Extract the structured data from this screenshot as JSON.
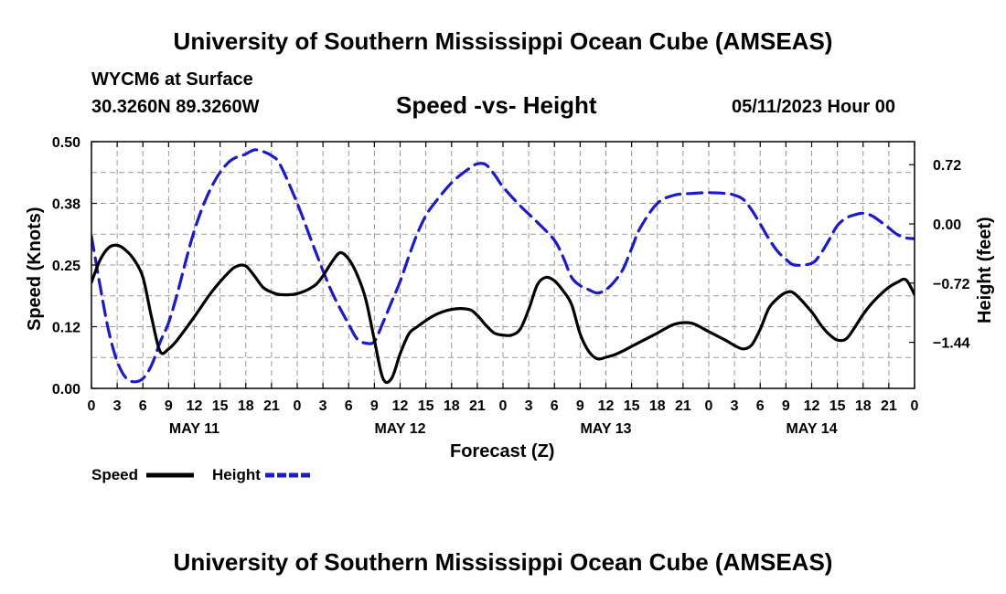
{
  "title_top": "University of Southern Mississippi Ocean Cube (AMSEAS)",
  "title_bottom": "University of Southern Mississippi Ocean Cube (AMSEAS)",
  "station": "WYCM6 at Surface",
  "location": "30.3260N  89.3260W",
  "datetime": "05/11/2023 Hour 00",
  "colors": {
    "speed": "#000000",
    "height": "#1a1ad1",
    "grid": "#9a9a9a"
  },
  "chart_data": {
    "type": "line",
    "title": "Speed -vs- Height",
    "xlabel": "Forecast (Z)",
    "ylabel": "Speed (Knots)",
    "y2label": "Height (feet)",
    "xlim": [
      0,
      96
    ],
    "ylim": [
      0,
      0.5
    ],
    "y2lim": [
      -2.0,
      1.0
    ],
    "x_ticks": [
      0,
      3,
      6,
      9,
      12,
      15,
      18,
      21,
      24,
      27,
      30,
      33,
      36,
      39,
      42,
      45,
      48,
      51,
      54,
      57,
      60,
      63,
      66,
      69,
      72,
      75,
      78,
      81,
      84,
      87,
      90,
      93,
      96
    ],
    "x_tick_labels": [
      "0",
      "3",
      "6",
      "9",
      "12",
      "15",
      "18",
      "21",
      "0",
      "3",
      "6",
      "9",
      "12",
      "15",
      "18",
      "21",
      "0",
      "3",
      "6",
      "9",
      "12",
      "15",
      "18",
      "21",
      "0",
      "3",
      "6",
      "9",
      "12",
      "15",
      "18",
      "21",
      "0"
    ],
    "y_ticks": [
      0.0,
      0.125,
      0.25,
      0.375,
      0.5
    ],
    "y_tick_labels": [
      "0.00",
      "0.12",
      "0.25",
      "0.38",
      "0.50"
    ],
    "y2_ticks": [
      0.72,
      0.0,
      -0.72,
      -1.44
    ],
    "y2_tick_labels": [
      "0.72",
      "0.00",
      "−0.72",
      "−1.44"
    ],
    "date_labels": [
      {
        "x": 12,
        "label": "MAY 11"
      },
      {
        "x": 36,
        "label": "MAY 12"
      },
      {
        "x": 60,
        "label": "MAY 13"
      },
      {
        "x": 84,
        "label": "MAY 14"
      }
    ],
    "grid": true,
    "series": [
      {
        "name": "Speed",
        "axis": "left",
        "style": "solid",
        "x": [
          0,
          1,
          2,
          3,
          4,
          5,
          6,
          7,
          8,
          9,
          10,
          12,
          14,
          16,
          17,
          18,
          19,
          20,
          21,
          22,
          24,
          26,
          27,
          28,
          29,
          30,
          31,
          32,
          33,
          34,
          35,
          36,
          37,
          38,
          40,
          42,
          44,
          45,
          46,
          47,
          48,
          49,
          50,
          51,
          52,
          53,
          54,
          55,
          56,
          57,
          58,
          59,
          60,
          61,
          62,
          63,
          64,
          66,
          68,
          70,
          72,
          74,
          75,
          76,
          77,
          78,
          79,
          80,
          81,
          82,
          84,
          85,
          86,
          87,
          88,
          89,
          90,
          91,
          92,
          93,
          94,
          95,
          96
        ],
        "y": [
          0.215,
          0.26,
          0.285,
          0.29,
          0.28,
          0.26,
          0.225,
          0.145,
          0.075,
          0.08,
          0.098,
          0.145,
          0.195,
          0.235,
          0.248,
          0.248,
          0.228,
          0.205,
          0.195,
          0.19,
          0.192,
          0.208,
          0.228,
          0.255,
          0.275,
          0.262,
          0.23,
          0.18,
          0.098,
          0.02,
          0.02,
          0.07,
          0.11,
          0.125,
          0.148,
          0.16,
          0.16,
          0.148,
          0.128,
          0.112,
          0.108,
          0.108,
          0.12,
          0.16,
          0.21,
          0.225,
          0.218,
          0.198,
          0.17,
          0.11,
          0.075,
          0.06,
          0.063,
          0.068,
          0.076,
          0.085,
          0.094,
          0.112,
          0.13,
          0.132,
          0.115,
          0.097,
          0.087,
          0.08,
          0.088,
          0.12,
          0.162,
          0.182,
          0.194,
          0.192,
          0.155,
          0.13,
          0.11,
          0.098,
          0.1,
          0.123,
          0.15,
          0.172,
          0.19,
          0.205,
          0.215,
          0.22,
          0.19
        ]
      },
      {
        "name": "Height",
        "axis": "right",
        "style": "dashed",
        "x": [
          0,
          1,
          2,
          3,
          4,
          5,
          6,
          7,
          8,
          9,
          10,
          12,
          14,
          16,
          18,
          19,
          20,
          21,
          22,
          24,
          26,
          28,
          30,
          31,
          32,
          33,
          34,
          35,
          36,
          37,
          38,
          39,
          40,
          42,
          44,
          45,
          46,
          47,
          48,
          50,
          52,
          54,
          55,
          56,
          57,
          58,
          59,
          60,
          61,
          62,
          63,
          64,
          66,
          68,
          70,
          72,
          74,
          75,
          76,
          77,
          78,
          79,
          80,
          81,
          82,
          84,
          85,
          86,
          87,
          88,
          89,
          90,
          91,
          92,
          93,
          94,
          95,
          96
        ],
        "y": [
          -0.15,
          -0.75,
          -1.3,
          -1.67,
          -1.87,
          -1.92,
          -1.88,
          -1.72,
          -1.44,
          -1.2,
          -0.85,
          -0.08,
          0.45,
          0.75,
          0.85,
          0.9,
          0.88,
          0.83,
          0.72,
          0.25,
          -0.3,
          -0.82,
          -1.22,
          -1.4,
          -1.45,
          -1.43,
          -1.2,
          -0.95,
          -0.7,
          -0.4,
          -0.12,
          0.1,
          0.25,
          0.5,
          0.67,
          0.73,
          0.72,
          0.6,
          0.45,
          0.22,
          0.02,
          -0.2,
          -0.4,
          -0.65,
          -0.75,
          -0.8,
          -0.84,
          -0.8,
          -0.7,
          -0.55,
          -0.3,
          -0.05,
          0.25,
          0.35,
          0.37,
          0.38,
          0.37,
          0.35,
          0.3,
          0.17,
          0.0,
          -0.18,
          -0.33,
          -0.43,
          -0.5,
          -0.48,
          -0.37,
          -0.2,
          -0.02,
          0.07,
          0.11,
          0.13,
          0.1,
          0.03,
          -0.05,
          -0.13,
          -0.17,
          -0.18
        ]
      }
    ],
    "legend": [
      {
        "label": "Speed",
        "style": "solid"
      },
      {
        "label": "Height",
        "style": "dashed"
      }
    ]
  }
}
